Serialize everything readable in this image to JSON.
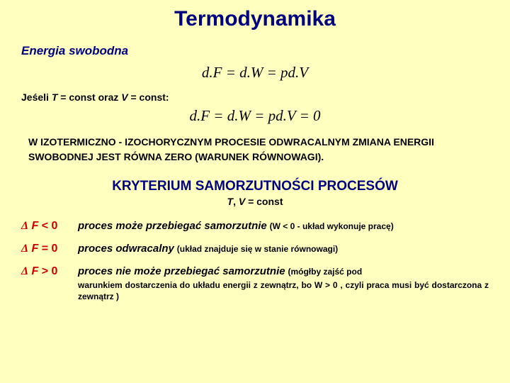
{
  "title": "Termodynamika",
  "subtitle": "Energia swobodna",
  "eq1": "d.F = d.W = pd.V",
  "cond": "Jeśeli T = const oraz V = const:",
  "eq2": "d.F = d.W = pd.V = 0",
  "statement": "W IZOTERMICZNO - IZOCHORYCZNYM PROCESIE ODWRACALNYM ZMIANA ENERGII SWOBODNEJ JEST RÓWNA ZERO (WARUNEK RÓWNOWAGI).",
  "kryt": "KRYTERIUM SAMORZUTNOŚCI PROCESÓW",
  "tv": "T, V = const",
  "cases": [
    {
      "lhs": "Δ F < 0",
      "main": "proces może przebiegać samorzutnie",
      "paren": "(W < 0 - układ wykonuje pracę)",
      "sub": ""
    },
    {
      "lhs": "Δ F = 0",
      "main": "proces odwracalny",
      "paren": "(układ znajduje się w stanie równowagi)",
      "sub": ""
    },
    {
      "lhs": "Δ F > 0",
      "main": "proces nie może przebiegać samorzutnie",
      "paren": "(mógłby zajść pod",
      "sub": "warunkiem dostarczenia do układu energii z zewnątrz, bo W > 0 , czyli praca musi być dostarczona z zewnątrz )"
    }
  ],
  "colors": {
    "bg": "#ffffc0",
    "navy": "#000080",
    "red": "#cc0000"
  }
}
